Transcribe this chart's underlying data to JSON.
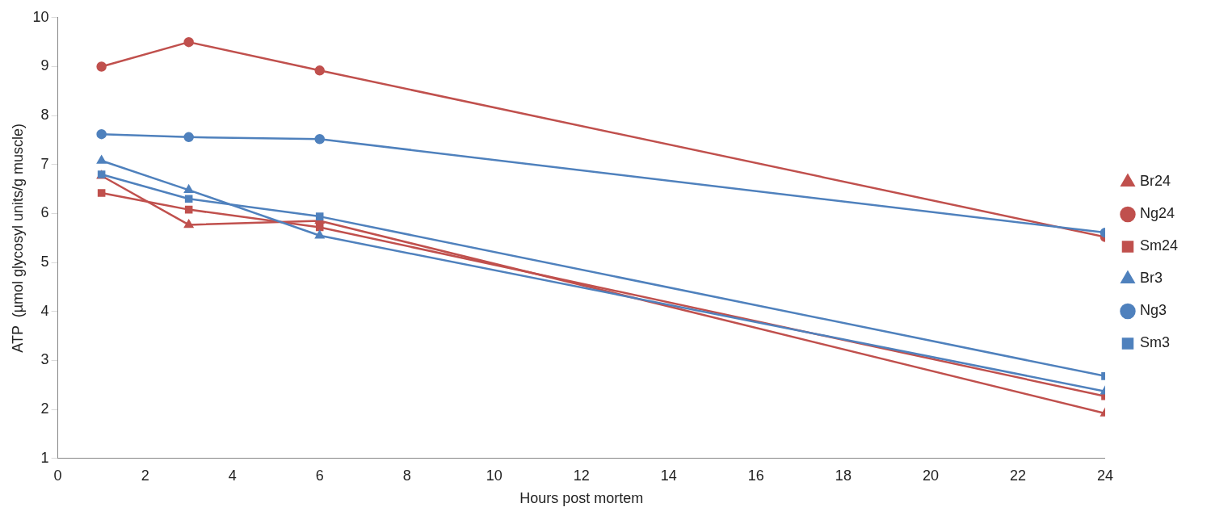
{
  "chart_data": {
    "type": "line",
    "xlabel": "Hours post mortem",
    "ylabel": "ATP  (µmol glycosyl units/g muscle)",
    "x": [
      1,
      3,
      6,
      24
    ],
    "series": [
      {
        "name": "Br24",
        "color": "#c0504d",
        "marker": "triangle",
        "values": [
          6.77,
          5.77,
          5.85,
          1.92
        ]
      },
      {
        "name": "Ng24",
        "color": "#c0504d",
        "marker": "circle",
        "values": [
          9.0,
          9.5,
          8.92,
          5.52
        ]
      },
      {
        "name": "Sm24",
        "color": "#c0504d",
        "marker": "square",
        "values": [
          6.42,
          6.08,
          5.72,
          2.27
        ]
      },
      {
        "name": "Br3",
        "color": "#4f81bd",
        "marker": "triangle",
        "values": [
          7.08,
          6.48,
          5.55,
          2.37
        ]
      },
      {
        "name": "Ng3",
        "color": "#4f81bd",
        "marker": "circle",
        "values": [
          7.62,
          7.56,
          7.52,
          5.61
        ]
      },
      {
        "name": "Sm3",
        "color": "#4f81bd",
        "marker": "square",
        "values": [
          6.8,
          6.3,
          5.94,
          2.68
        ]
      }
    ],
    "xlim": [
      0,
      24
    ],
    "xticks": [
      0,
      2,
      4,
      6,
      8,
      10,
      12,
      14,
      16,
      18,
      20,
      22,
      24
    ],
    "ylim": [
      1,
      10
    ],
    "yticks": [
      1,
      2,
      3,
      4,
      5,
      6,
      7,
      8,
      9,
      10
    ],
    "grid": false,
    "legend": "right",
    "line_style": "solid"
  }
}
